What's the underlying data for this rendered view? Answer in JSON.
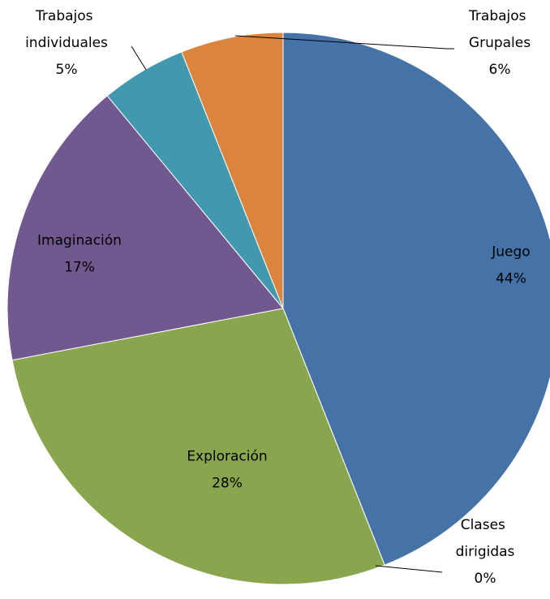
{
  "chart_data": {
    "type": "pie",
    "categories": [
      "Juego",
      "Clases dirigidas",
      "Exploración",
      "Imaginación",
      "Trabajos individuales",
      "Trabajos Grupales"
    ],
    "values": [
      44,
      0,
      28,
      17,
      5,
      6
    ],
    "value_labels": [
      "44%",
      "0%",
      "28%",
      "17%",
      "5%",
      "6%"
    ],
    "colors": [
      "#4572a7",
      "#aa4643",
      "#89a54e",
      "#71588f",
      "#4198af",
      "#db843d"
    ]
  }
}
